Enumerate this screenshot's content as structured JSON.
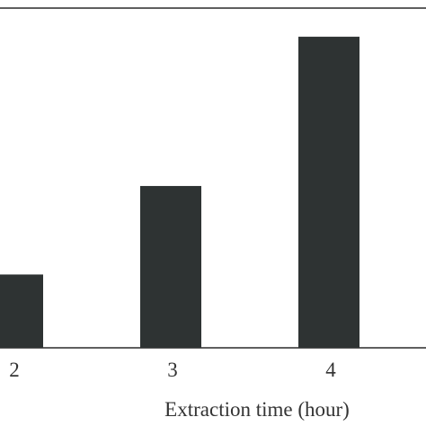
{
  "chart_data": {
    "type": "bar",
    "categories": [
      "2",
      "3",
      "4"
    ],
    "values": [
      0.82,
      1.81,
      3.48
    ],
    "title": "",
    "xlabel": "Extraction time (hour)",
    "ylabel": "",
    "ylim": [
      0,
      3.8
    ],
    "grid": false,
    "colors": {
      "bar": "#2e3333",
      "axis": "#2a2a2a",
      "text": "#333333"
    }
  }
}
